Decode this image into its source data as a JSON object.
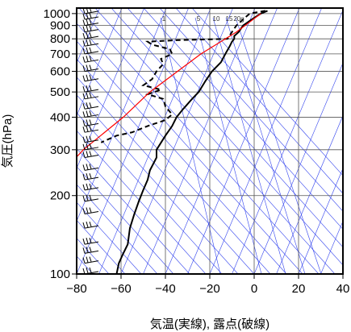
{
  "chart_data": {
    "type": "line",
    "title": "",
    "xlabel": "気温(実線), 露点(破線)",
    "ylabel": "気圧(hPa)",
    "xlim": [
      -80,
      40
    ],
    "ylim": [
      1050,
      100
    ],
    "y_scale": "log",
    "x_ticks": [
      "−80",
      "−60",
      "−40",
      "−20",
      "0",
      "20",
      "40"
    ],
    "x_tick_values": [
      -80,
      -60,
      -40,
      -20,
      0,
      20,
      40
    ],
    "y_ticks": [
      "100",
      "200",
      "300",
      "400",
      "500",
      "600",
      "700",
      "800",
      "900",
      "1000"
    ],
    "y_tick_values": [
      100,
      200,
      300,
      400,
      500,
      600,
      700,
      800,
      900,
      1000
    ],
    "mixing_ratio_labels": [
      "1",
      "5",
      "10",
      "15",
      "20g"
    ],
    "mixing_ratio_values": [
      1,
      5,
      10,
      15,
      20
    ],
    "grid": true,
    "series": [
      {
        "style": "solid",
        "color": "#000000",
        "points": [
          {
            "p": 1025,
            "t": 6
          },
          {
            "p": 1000,
            "t": 3
          },
          {
            "p": 950,
            "t": -1
          },
          {
            "p": 900,
            "t": -5
          },
          {
            "p": 850,
            "t": -7
          },
          {
            "p": 820,
            "t": -9
          },
          {
            "p": 800,
            "t": -9
          },
          {
            "p": 780,
            "t": -10
          },
          {
            "p": 750,
            "t": -11
          },
          {
            "p": 700,
            "t": -13
          },
          {
            "p": 650,
            "t": -15
          },
          {
            "p": 600,
            "t": -19
          },
          {
            "p": 550,
            "t": -22
          },
          {
            "p": 500,
            "t": -25
          },
          {
            "p": 470,
            "t": -28
          },
          {
            "p": 430,
            "t": -32
          },
          {
            "p": 400,
            "t": -35
          },
          {
            "p": 370,
            "t": -37
          },
          {
            "p": 340,
            "t": -40
          },
          {
            "p": 300,
            "t": -44
          },
          {
            "p": 280,
            "t": -44
          },
          {
            "p": 250,
            "t": -47
          },
          {
            "p": 230,
            "t": -48
          },
          {
            "p": 210,
            "t": -50
          },
          {
            "p": 190,
            "t": -52
          },
          {
            "p": 170,
            "t": -54
          },
          {
            "p": 150,
            "t": -56
          },
          {
            "p": 130,
            "t": -57
          },
          {
            "p": 120,
            "t": -59
          },
          {
            "p": 110,
            "t": -61
          },
          {
            "p": 100,
            "t": -62
          }
        ]
      },
      {
        "style": "dashed",
        "color": "#000000",
        "points": [
          {
            "p": 1025,
            "t": 5
          },
          {
            "p": 1000,
            "t": -2
          },
          {
            "p": 950,
            "t": -5
          },
          {
            "p": 900,
            "t": -8
          },
          {
            "p": 850,
            "t": -10
          },
          {
            "p": 800,
            "t": -12
          },
          {
            "p": 790,
            "t": -35
          },
          {
            "p": 780,
            "t": -48
          },
          {
            "p": 760,
            "t": -46
          },
          {
            "p": 730,
            "t": -38
          },
          {
            "p": 700,
            "t": -37
          },
          {
            "p": 670,
            "t": -42
          },
          {
            "p": 640,
            "t": -41
          },
          {
            "p": 600,
            "t": -44
          },
          {
            "p": 560,
            "t": -46
          },
          {
            "p": 530,
            "t": -50
          },
          {
            "p": 510,
            "t": -42
          },
          {
            "p": 490,
            "t": -48
          },
          {
            "p": 470,
            "t": -41
          },
          {
            "p": 440,
            "t": -40
          },
          {
            "p": 410,
            "t": -37
          },
          {
            "p": 390,
            "t": -40
          },
          {
            "p": 370,
            "t": -48
          },
          {
            "p": 350,
            "t": -55
          },
          {
            "p": 340,
            "t": -62
          },
          {
            "p": 320,
            "t": -69
          }
        ]
      }
    ],
    "parcel_path": {
      "color": "#ff0000",
      "points": [
        {
          "p": 1000,
          "t": 3
        },
        {
          "p": 850,
          "t": -8
        },
        {
          "p": 700,
          "t": -24
        },
        {
          "p": 500,
          "t": -47
        },
        {
          "p": 400,
          "t": -59
        },
        {
          "p": 300,
          "t": -77
        },
        {
          "p": 270,
          "t": -82
        }
      ]
    },
    "wind_barbs": {
      "levels": [
        100,
        110,
        120,
        130,
        150,
        170,
        190,
        210,
        230,
        250,
        280,
        300,
        320,
        350,
        370,
        400,
        430,
        470,
        500,
        550,
        600,
        650,
        700,
        750,
        800,
        850,
        900,
        950,
        1000
      ]
    }
  }
}
